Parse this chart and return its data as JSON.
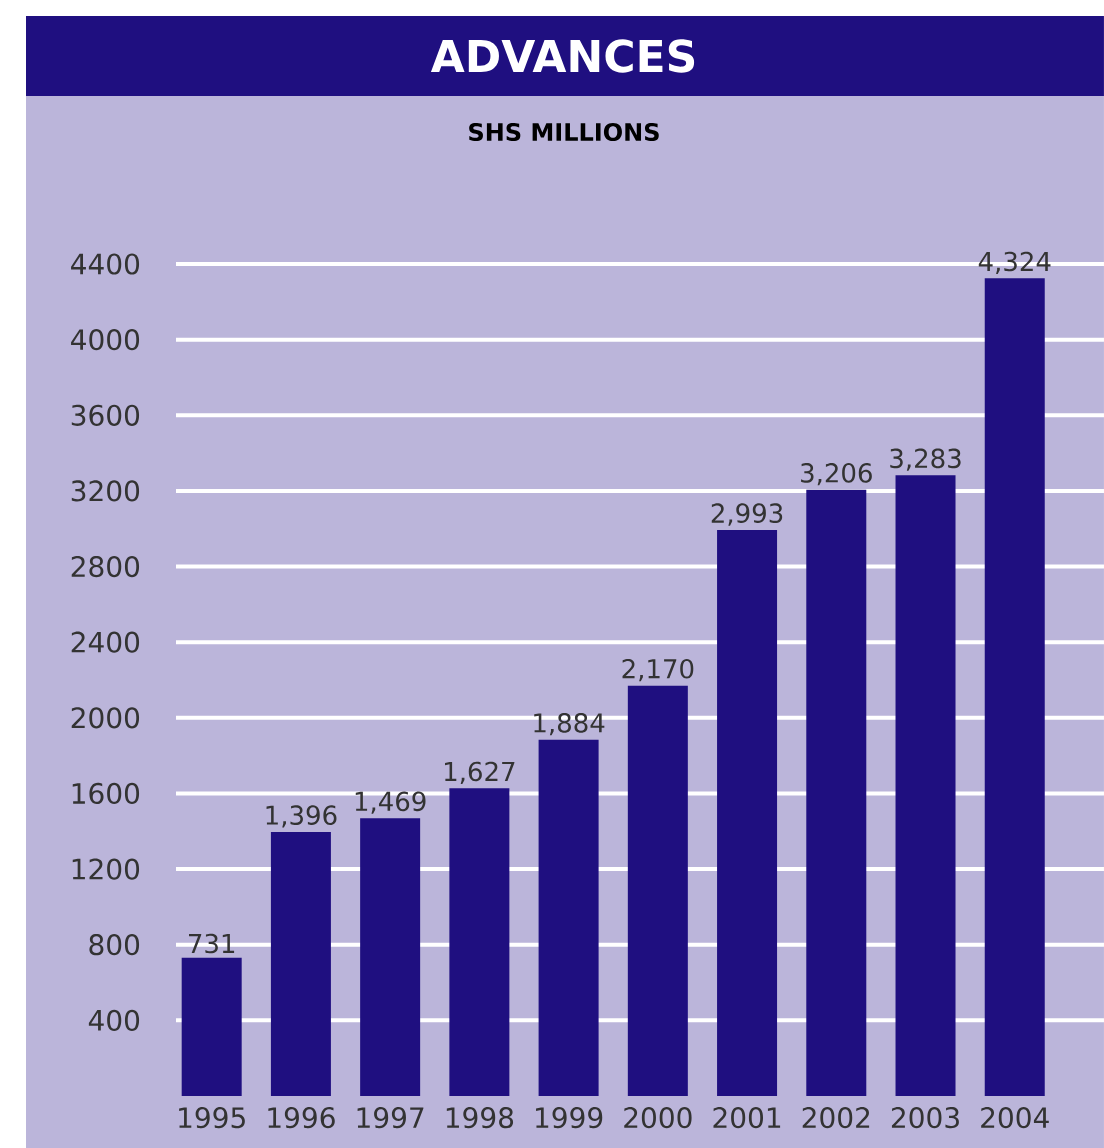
{
  "chart_data": {
    "type": "bar",
    "title": "ADVANCES",
    "subtitle": "SHS MILLIONS",
    "categories": [
      "1995",
      "1996",
      "1997",
      "1998",
      "1999",
      "2000",
      "2001",
      "2002",
      "2003",
      "2004"
    ],
    "values": [
      731,
      1396,
      1469,
      1627,
      1884,
      2170,
      2993,
      3206,
      3283,
      4324
    ],
    "value_labels": [
      "731",
      "1,396",
      "1,469",
      "1,627",
      "1,884",
      "2,170",
      "2,993",
      "3,206",
      "3,283",
      "4,324"
    ],
    "color": "#1f0f80",
    "ylim": [
      0,
      4400
    ],
    "yticks": [
      400,
      800,
      1200,
      1600,
      2000,
      2400,
      2800,
      3200,
      3600,
      4000,
      4400
    ],
    "grid": "y"
  }
}
